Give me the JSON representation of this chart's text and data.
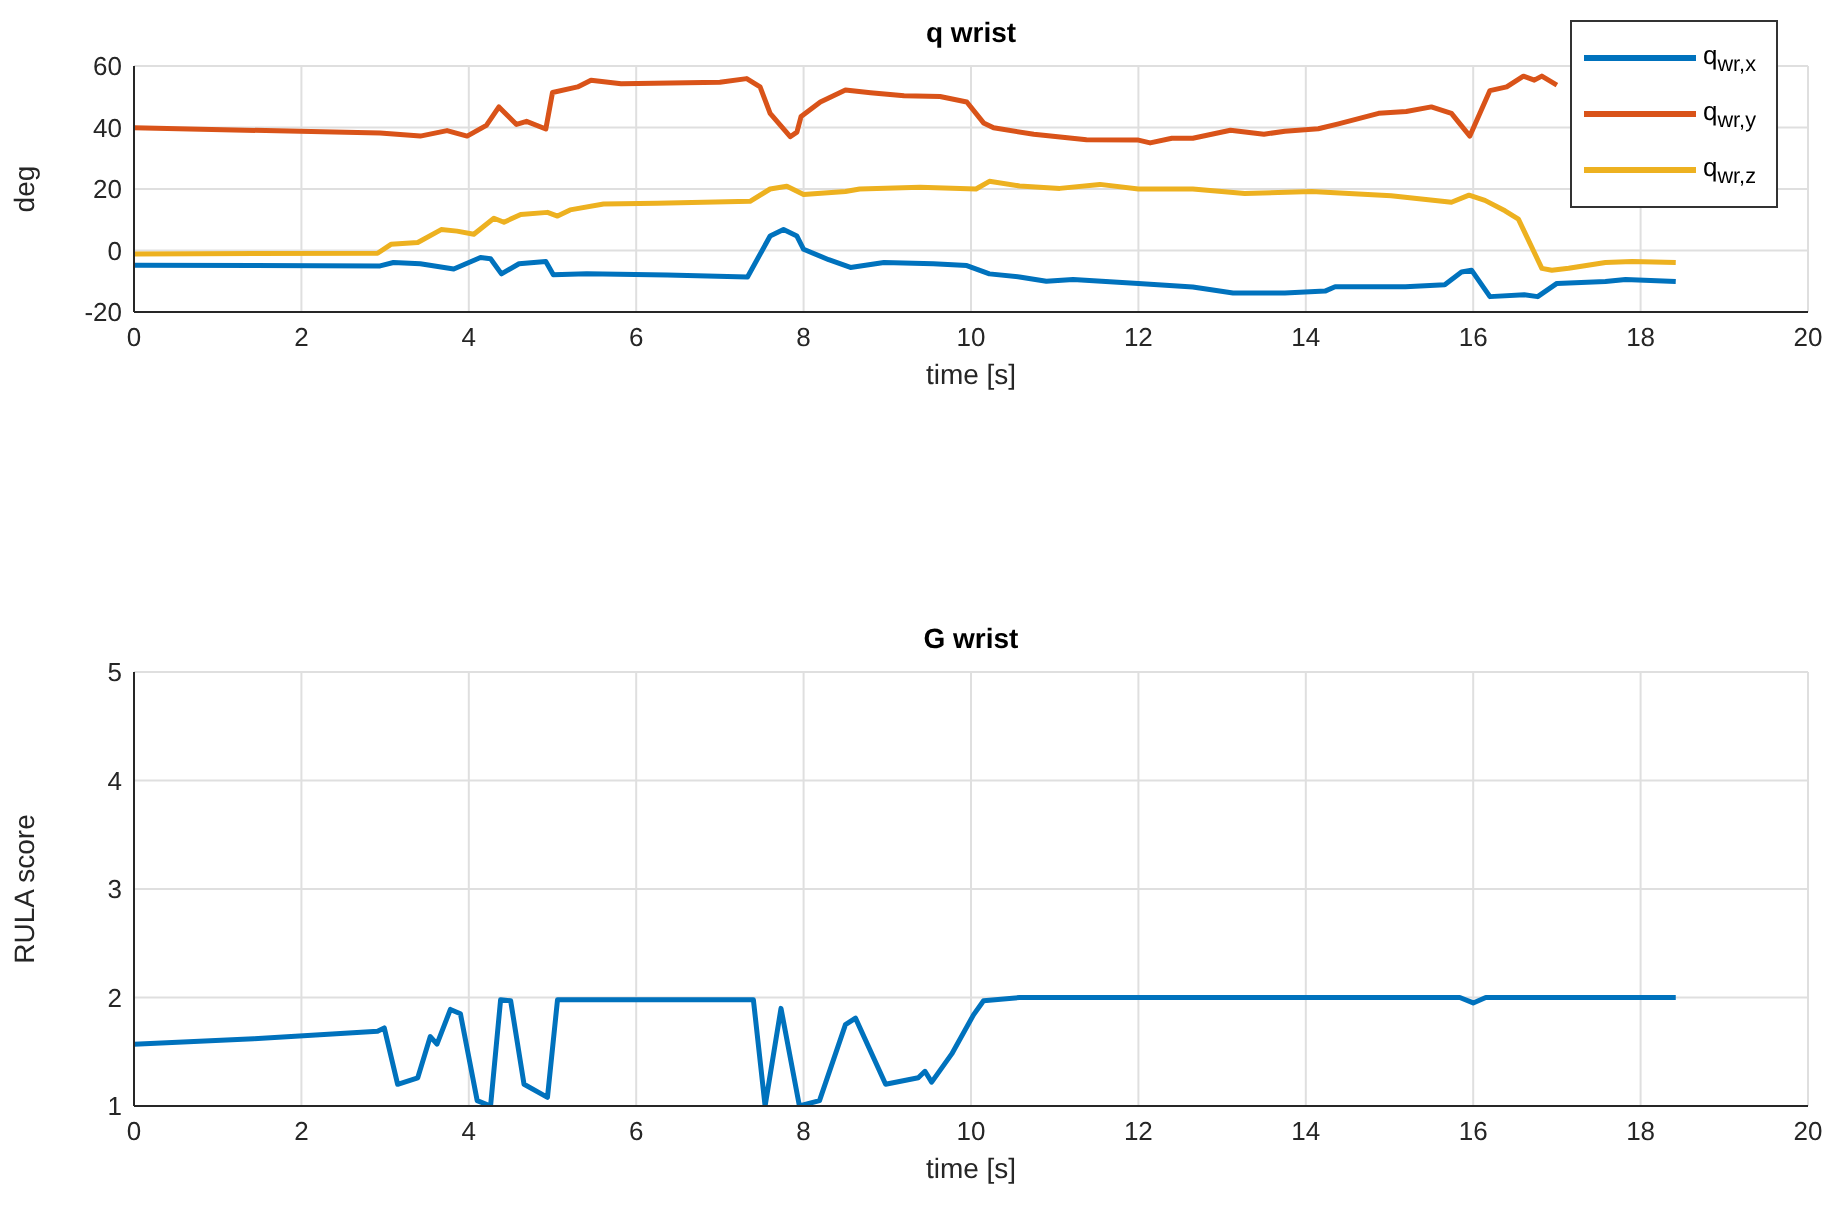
{
  "chart_data": [
    {
      "type": "line",
      "title": "q wrist",
      "xlabel": "time [s]",
      "ylabel": "deg",
      "xlim": [
        0,
        20
      ],
      "xticks": [
        0,
        2,
        4,
        6,
        8,
        10,
        12,
        14,
        16,
        18,
        20
      ],
      "ylim": [
        -20,
        60
      ],
      "yticks": [
        -20,
        0,
        20,
        40,
        60
      ],
      "grid": true,
      "legend": "top right",
      "line_style": "solid",
      "marker": "none",
      "series": [
        {
          "name": "q$_{wr,x}$",
          "color": "#0072bd",
          "x": [
            0,
            2.94,
            3.1,
            3.42,
            3.82,
            4.14,
            4.26,
            4.39,
            4.6,
            4.92,
            5.01,
            5.41,
            6.37,
            7.33,
            7.6,
            7.76,
            7.92,
            8.0,
            8.3,
            8.56,
            8.96,
            9.55,
            9.95,
            10.22,
            10.58,
            10.9,
            11.22,
            12.0,
            12.65,
            13.13,
            13.75,
            14.23,
            14.35,
            15.19,
            15.66,
            15.86,
            15.98,
            16.2,
            16.61,
            16.77,
            17.0,
            17.58,
            17.82,
            18.42
          ],
          "values": [
            -4.8,
            -5.0,
            -3.9,
            -4.3,
            -6.0,
            -2.3,
            -2.7,
            -7.6,
            -4.3,
            -3.6,
            -7.9,
            -7.6,
            -8.0,
            -8.6,
            4.7,
            6.8,
            4.7,
            0.4,
            -3.0,
            -5.5,
            -3.9,
            -4.3,
            -4.9,
            -7.6,
            -8.6,
            -10,
            -9.4,
            -10.7,
            -11.9,
            -13.8,
            -13.8,
            -13.2,
            -11.8,
            -11.8,
            -11.1,
            -7.0,
            -6.4,
            -15,
            -14.4,
            -15,
            -10.7,
            -10.1,
            -9.4,
            -10.1
          ]
        },
        {
          "name": "q$_{wr,y}$",
          "color": "#d95319",
          "x": [
            0,
            2.94,
            3.42,
            3.74,
            3.98,
            4.21,
            4.36,
            4.57,
            4.69,
            4.92,
            5.0,
            5.3,
            5.46,
            5.82,
            7.0,
            7.32,
            7.48,
            7.6,
            7.84,
            7.92,
            7.97,
            8.2,
            8.5,
            8.8,
            9.2,
            9.63,
            9.95,
            10.15,
            10.27,
            10.75,
            11.38,
            12.0,
            12.14,
            12.4,
            12.65,
            13.1,
            13.5,
            13.75,
            14.15,
            14.39,
            14.87,
            15.2,
            15.5,
            15.74,
            15.96,
            16.2,
            16.4,
            16.6,
            16.73,
            16.82,
            17.0
          ],
          "values": [
            39.9,
            38.2,
            37.2,
            39,
            37.2,
            40.7,
            46.7,
            41,
            42,
            39.5,
            51.4,
            53.2,
            55.4,
            54.2,
            54.7,
            55.9,
            53.2,
            44.6,
            37,
            38.5,
            43.6,
            48.3,
            52.2,
            51.3,
            50.3,
            50.1,
            48.3,
            41.5,
            39.9,
            37.8,
            36,
            35.9,
            35,
            36.5,
            36.5,
            39.1,
            37.8,
            38.8,
            39.6,
            41.2,
            44.6,
            45.2,
            46.7,
            44.6,
            37.2,
            52,
            53.2,
            56.7,
            55.4,
            56.7,
            53.8
          ]
        },
        {
          "name": "q$_{wr,z}$",
          "color": "#edb120",
          "x": [
            0,
            2.91,
            3.07,
            3.39,
            3.67,
            3.86,
            4.06,
            4.3,
            4.42,
            4.62,
            4.94,
            5.06,
            5.21,
            5.61,
            6.25,
            7.36,
            7.6,
            7.8,
            8.0,
            8.5,
            8.67,
            9.39,
            10.06,
            10.22,
            10.58,
            11.06,
            11.54,
            12.0,
            12.65,
            13.27,
            14.07,
            15.02,
            15.74,
            15.95,
            16.14,
            16.38,
            16.54,
            16.82,
            16.94,
            17.14,
            17.58,
            17.9,
            18.42
          ],
          "values": [
            -1.1,
            -0.9,
            2.0,
            2.6,
            6.8,
            6.3,
            5.3,
            10.5,
            9.2,
            11.7,
            12.4,
            11.2,
            13.2,
            15.1,
            15.4,
            16.0,
            20.0,
            20.9,
            18.2,
            19.2,
            20,
            20.6,
            20,
            22.5,
            21,
            20.2,
            21.5,
            20,
            20,
            18.5,
            19.2,
            17.8,
            15.7,
            18,
            16.3,
            12.9,
            10.2,
            -5.8,
            -6.4,
            -5.8,
            -3.9,
            -3.6,
            -3.9
          ]
        }
      ]
    },
    {
      "type": "line",
      "title": "G wrist",
      "xlabel": "time [s]",
      "ylabel": "RULA score",
      "xlim": [
        0,
        20
      ],
      "xticks": [
        0,
        2,
        4,
        6,
        8,
        10,
        12,
        14,
        16,
        18,
        20
      ],
      "ylim": [
        1,
        5
      ],
      "yticks": [
        1,
        2,
        3,
        4,
        5
      ],
      "grid": true,
      "line_style": "solid",
      "marker": "none",
      "color": "#0072bd",
      "x": [
        0,
        1.43,
        2.91,
        2.99,
        3.15,
        3.39,
        3.54,
        3.62,
        3.78,
        3.9,
        4.1,
        4.26,
        4.38,
        4.5,
        4.66,
        4.94,
        5.06,
        7.4,
        7.54,
        7.73,
        7.95,
        8.19,
        8.5,
        8.62,
        8.98,
        9.37,
        9.45,
        9.53,
        9.77,
        10.03,
        10.15,
        10.58,
        15.84,
        16.0,
        16.15,
        18.42
      ],
      "values": [
        1.57,
        1.62,
        1.69,
        1.72,
        1.2,
        1.26,
        1.64,
        1.57,
        1.89,
        1.85,
        1.05,
        1.0,
        1.98,
        1.97,
        1.2,
        1.08,
        1.98,
        1.98,
        1.0,
        1.9,
        1.0,
        1.05,
        1.75,
        1.81,
        1.2,
        1.26,
        1.32,
        1.22,
        1.48,
        1.84,
        1.97,
        2.0,
        2.0,
        1.95,
        2.0,
        2.0
      ]
    }
  ]
}
